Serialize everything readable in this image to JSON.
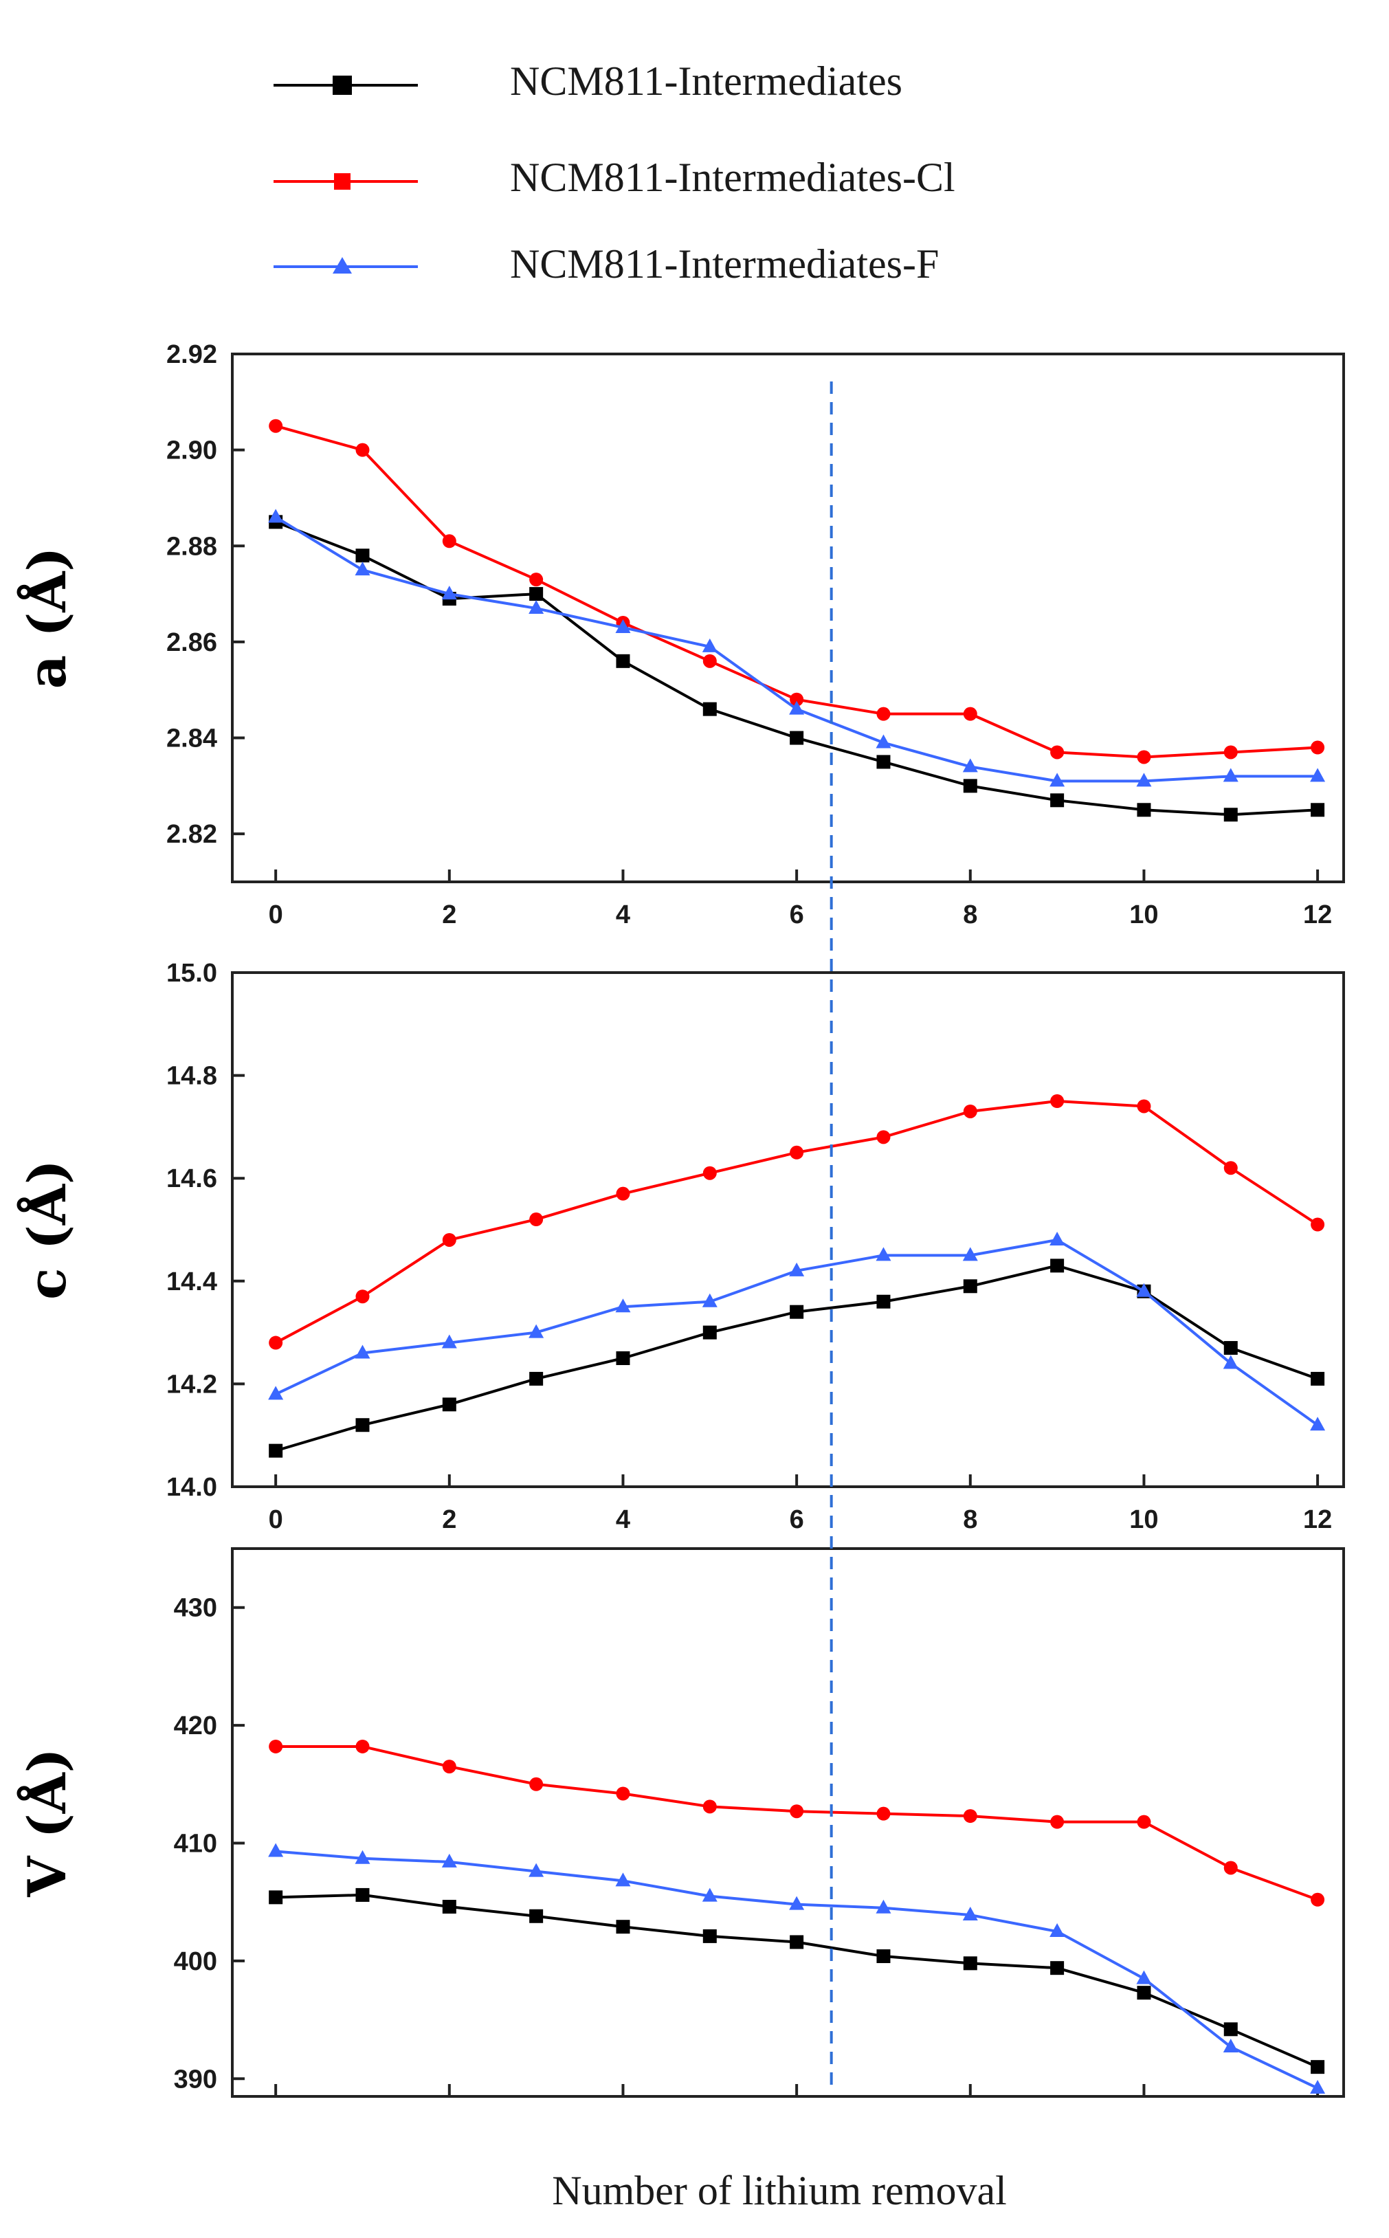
{
  "legend": [
    {
      "label": "NCM811-Intermediates",
      "color": "#000000",
      "marker": "square"
    },
    {
      "label": "NCM811-Intermediates-Cl",
      "color": "#ff0000",
      "marker": "square"
    },
    {
      "label": "NCM811-Intermediates-F",
      "color": "#3a67ff",
      "marker": "triangle"
    }
  ],
  "xlabel": "Number of lithium removal",
  "chart_data": [
    {
      "type": "line",
      "ylabel": "a (Å)",
      "x": [
        0,
        1,
        2,
        3,
        4,
        5,
        6,
        7,
        8,
        9,
        10,
        11,
        12
      ],
      "xlim": [
        -0.5,
        12.3
      ],
      "ylim": [
        2.81,
        2.92
      ],
      "xticks": [
        0,
        2,
        4,
        6,
        8,
        10,
        12
      ],
      "yticks": [
        2.82,
        2.84,
        2.86,
        2.88,
        2.9,
        2.92
      ],
      "ytick_decimals": 2,
      "show_xtick_labels": true,
      "vline_x": 6.4,
      "series": [
        {
          "name": "NCM811-Intermediates",
          "values": [
            2.885,
            2.878,
            2.869,
            2.87,
            2.856,
            2.846,
            2.84,
            2.835,
            2.83,
            2.827,
            2.825,
            2.824,
            2.825
          ]
        },
        {
          "name": "NCM811-Intermediates-Cl",
          "values": [
            2.905,
            2.9,
            2.881,
            2.873,
            2.864,
            2.856,
            2.848,
            2.845,
            2.845,
            2.837,
            2.836,
            2.837,
            2.838
          ]
        },
        {
          "name": "NCM811-Intermediates-F",
          "values": [
            2.886,
            2.875,
            2.87,
            2.867,
            2.863,
            2.859,
            2.846,
            2.839,
            2.834,
            2.831,
            2.831,
            2.832,
            2.832
          ]
        }
      ]
    },
    {
      "type": "line",
      "ylabel": "c (Å)",
      "x": [
        0,
        1,
        2,
        3,
        4,
        5,
        6,
        7,
        8,
        9,
        10,
        11,
        12
      ],
      "xlim": [
        -0.5,
        12.3
      ],
      "ylim": [
        14.0,
        15.0
      ],
      "xticks": [
        0,
        2,
        4,
        6,
        8,
        10,
        12
      ],
      "yticks": [
        14.0,
        14.2,
        14.4,
        14.6,
        14.8,
        15.0
      ],
      "ytick_decimals": 1,
      "show_xtick_labels": true,
      "vline_x": 6.4,
      "series": [
        {
          "name": "NCM811-Intermediates",
          "values": [
            14.07,
            14.12,
            14.16,
            14.21,
            14.25,
            14.3,
            14.34,
            14.36,
            14.39,
            14.43,
            14.38,
            14.27,
            14.21
          ]
        },
        {
          "name": "NCM811-Intermediates-Cl",
          "values": [
            14.28,
            14.37,
            14.48,
            14.52,
            14.57,
            14.61,
            14.65,
            14.68,
            14.73,
            14.75,
            14.74,
            14.62,
            14.51
          ]
        },
        {
          "name": "NCM811-Intermediates-F",
          "values": [
            14.18,
            14.26,
            14.28,
            14.3,
            14.35,
            14.36,
            14.42,
            14.45,
            14.45,
            14.48,
            14.38,
            14.24,
            14.12
          ]
        }
      ]
    },
    {
      "type": "line",
      "ylabel": "V (Å)",
      "x": [
        0,
        1,
        2,
        3,
        4,
        5,
        6,
        7,
        8,
        9,
        10,
        11,
        12
      ],
      "xlim": [
        -0.5,
        12.3
      ],
      "ylim": [
        388.5,
        435
      ],
      "xticks": [
        0,
        2,
        4,
        6,
        8,
        10,
        12
      ],
      "yticks": [
        390,
        400,
        410,
        420,
        430
      ],
      "ytick_decimals": 0,
      "show_xtick_labels": false,
      "vline_x": 6.3,
      "series": [
        {
          "name": "NCM811-Intermediates",
          "values": [
            405.4,
            405.6,
            404.6,
            403.8,
            402.9,
            402.1,
            401.6,
            400.4,
            399.8,
            399.4,
            397.3,
            394.2,
            391.0
          ]
        },
        {
          "name": "NCM811-Intermediates-Cl",
          "values": [
            418.2,
            418.2,
            416.5,
            415.0,
            414.2,
            413.1,
            412.7,
            412.5,
            412.3,
            411.8,
            411.8,
            407.9,
            405.2
          ]
        },
        {
          "name": "NCM811-Intermediates-F",
          "values": [
            409.3,
            408.7,
            408.4,
            407.6,
            406.8,
            405.5,
            404.8,
            404.5,
            403.9,
            402.5,
            398.5,
            392.7,
            389.2
          ]
        }
      ]
    }
  ]
}
